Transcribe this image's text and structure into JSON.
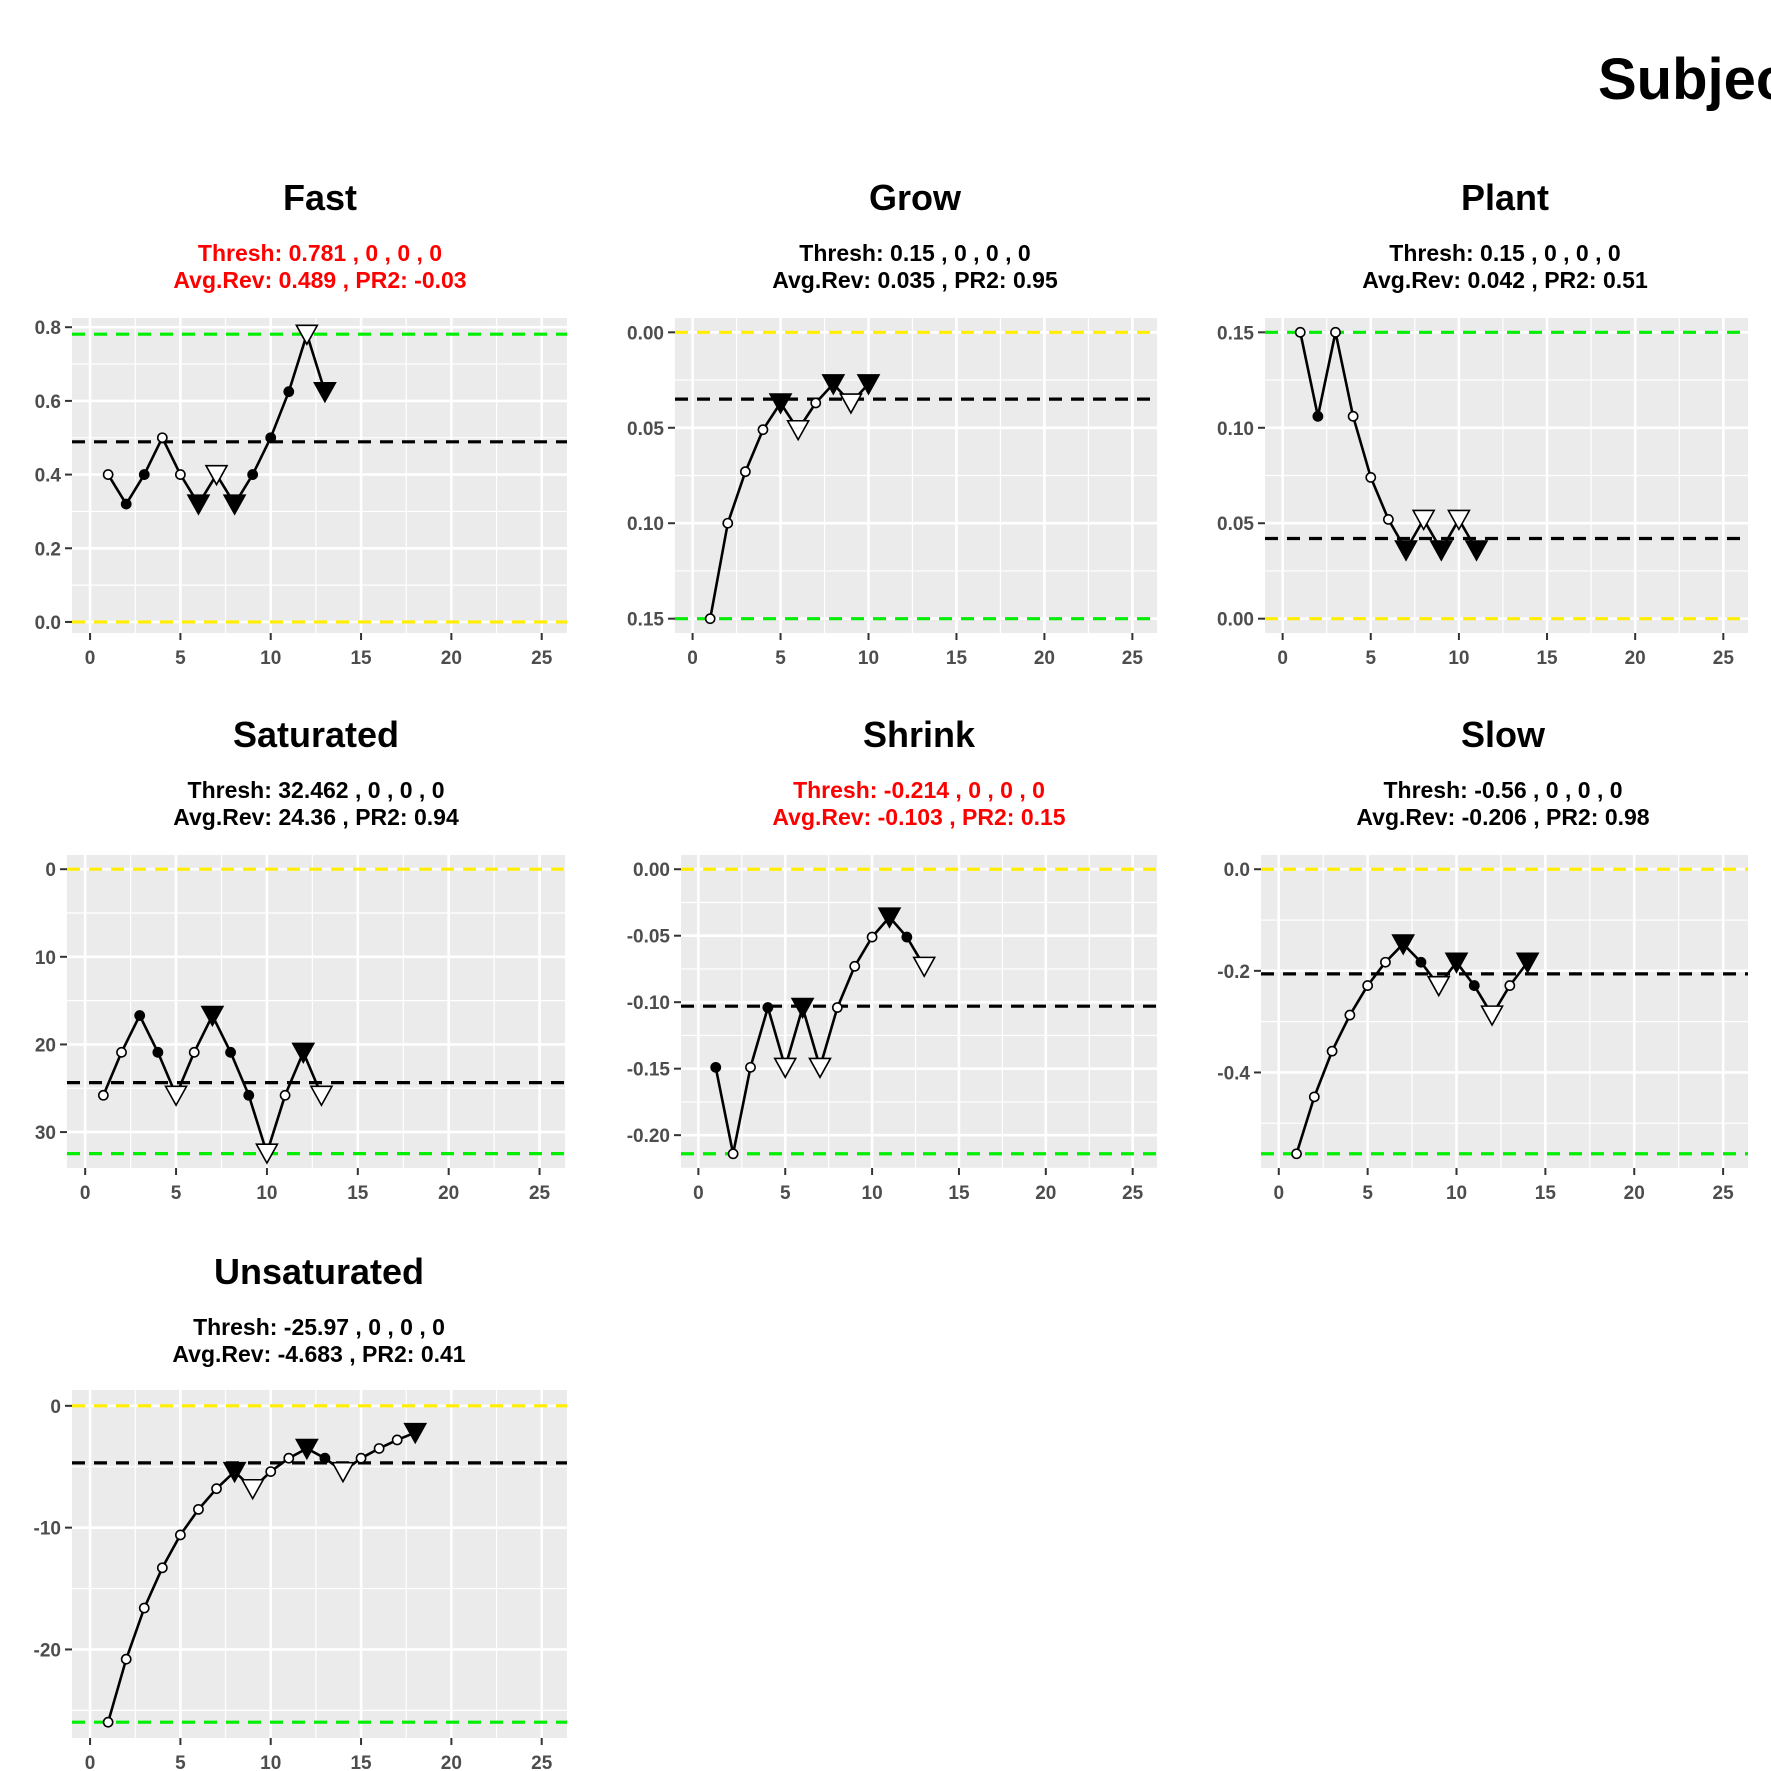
{
  "title": "Subjec",
  "colors": {
    "panel": "#ebebeb",
    "grid_major": "#ffffff",
    "green": "#00ee00",
    "yellow": "#ffee00",
    "red": "#ff0000",
    "black": "#000000"
  },
  "chart_data": [
    {
      "type": "line",
      "title": "Fast",
      "subtitle": [
        "Thresh: 0.781 , 0 , 0 , 0",
        "Avg.Rev: 0.489 , PR2: -0.03"
      ],
      "subtitle_color": "red",
      "xlim": [
        -1,
        26.4
      ],
      "ylim": [
        -0.03,
        0.825
      ],
      "x_ticks": [
        0,
        5,
        10,
        15,
        20,
        25
      ],
      "y_ticks": [
        0.0,
        0.2,
        0.4,
        0.6,
        0.8
      ],
      "y_tick_labels": [
        "0.0",
        "0.2",
        "0.4",
        "0.6",
        "0.8"
      ],
      "reversed": false,
      "lines": {
        "green": 0.781,
        "yellow": 0.0,
        "black": 0.489
      },
      "points": [
        {
          "x": 1,
          "y": 0.4,
          "s": "o"
        },
        {
          "x": 2,
          "y": 0.32,
          "s": "f"
        },
        {
          "x": 3,
          "y": 0.4,
          "s": "f"
        },
        {
          "x": 4,
          "y": 0.5,
          "s": "o"
        },
        {
          "x": 5,
          "y": 0.4,
          "s": "o"
        },
        {
          "x": 6,
          "y": 0.32,
          "s": "F"
        },
        {
          "x": 7,
          "y": 0.4,
          "s": "O"
        },
        {
          "x": 8,
          "y": 0.32,
          "s": "F"
        },
        {
          "x": 9,
          "y": 0.4,
          "s": "f"
        },
        {
          "x": 10,
          "y": 0.5,
          "s": "f"
        },
        {
          "x": 11,
          "y": 0.625,
          "s": "f"
        },
        {
          "x": 12,
          "y": 0.781,
          "s": "O"
        },
        {
          "x": 13,
          "y": 0.625,
          "s": "F"
        }
      ]
    },
    {
      "type": "line",
      "title": "Grow",
      "subtitle": [
        "Thresh: 0.15 , 0 , 0 , 0",
        "Avg.Rev: 0.035 , PR2: 0.95"
      ],
      "subtitle_color": "black",
      "xlim": [
        -1,
        26.4
      ],
      "ylim": [
        -0.0075,
        0.1575
      ],
      "x_ticks": [
        0,
        5,
        10,
        15,
        20,
        25
      ],
      "y_ticks": [
        0.0,
        0.05,
        0.1,
        0.15
      ],
      "y_tick_labels": [
        "0.00",
        "0.05",
        "0.10",
        "0.15"
      ],
      "reversed": true,
      "lines": {
        "green": 0.15,
        "yellow": 0.0,
        "black": 0.035
      },
      "points": [
        {
          "x": 1,
          "y": 0.15,
          "s": "o"
        },
        {
          "x": 2,
          "y": 0.1,
          "s": "o"
        },
        {
          "x": 3,
          "y": 0.073,
          "s": "o"
        },
        {
          "x": 4,
          "y": 0.051,
          "s": "o"
        },
        {
          "x": 5,
          "y": 0.037,
          "s": "F"
        },
        {
          "x": 6,
          "y": 0.051,
          "s": "O"
        },
        {
          "x": 7,
          "y": 0.037,
          "s": "o"
        },
        {
          "x": 8,
          "y": 0.027,
          "s": "F"
        },
        {
          "x": 9,
          "y": 0.037,
          "s": "O"
        },
        {
          "x": 10,
          "y": 0.027,
          "s": "F"
        }
      ]
    },
    {
      "type": "line",
      "title": "Plant",
      "subtitle": [
        "Thresh: 0.15 , 0 , 0 , 0",
        "Avg.Rev: 0.042 , PR2: 0.51"
      ],
      "subtitle_color": "black",
      "xlim": [
        -1,
        26.4
      ],
      "ylim": [
        -0.0075,
        0.1575
      ],
      "x_ticks": [
        0,
        5,
        10,
        15,
        20,
        25
      ],
      "y_ticks": [
        0.0,
        0.05,
        0.1,
        0.15
      ],
      "y_tick_labels": [
        "0.00",
        "0.05",
        "0.10",
        "0.15"
      ],
      "reversed": false,
      "lines": {
        "green": 0.15,
        "yellow": 0.0,
        "black": 0.042
      },
      "points": [
        {
          "x": 1,
          "y": 0.15,
          "s": "o"
        },
        {
          "x": 2,
          "y": 0.106,
          "s": "f"
        },
        {
          "x": 3,
          "y": 0.15,
          "s": "o"
        },
        {
          "x": 4,
          "y": 0.106,
          "s": "o"
        },
        {
          "x": 5,
          "y": 0.074,
          "s": "o"
        },
        {
          "x": 6,
          "y": 0.052,
          "s": "o"
        },
        {
          "x": 7,
          "y": 0.036,
          "s": "F"
        },
        {
          "x": 8,
          "y": 0.052,
          "s": "O"
        },
        {
          "x": 9,
          "y": 0.036,
          "s": "F"
        },
        {
          "x": 10,
          "y": 0.052,
          "s": "O"
        },
        {
          "x": 11,
          "y": 0.036,
          "s": "F"
        }
      ]
    },
    {
      "type": "line",
      "title": "Saturated",
      "subtitle": [
        "Thresh: 32.462 , 0 , 0 , 0",
        "Avg.Rev: 24.36 , PR2: 0.94"
      ],
      "subtitle_color": "black",
      "xlim": [
        -1,
        26.4
      ],
      "ylim": [
        -1.62,
        34.1
      ],
      "x_ticks": [
        0,
        5,
        10,
        15,
        20,
        25
      ],
      "y_ticks": [
        0,
        10,
        20,
        30
      ],
      "y_tick_labels": [
        "0",
        "10",
        "20",
        "30"
      ],
      "reversed": true,
      "lines": {
        "green": 32.462,
        "yellow": 0.0,
        "black": 24.36
      },
      "points": [
        {
          "x": 1,
          "y": 25.8,
          "s": "o"
        },
        {
          "x": 2,
          "y": 20.9,
          "s": "o"
        },
        {
          "x": 3,
          "y": 16.7,
          "s": "f"
        },
        {
          "x": 4,
          "y": 20.9,
          "s": "f"
        },
        {
          "x": 5,
          "y": 25.8,
          "s": "O"
        },
        {
          "x": 6,
          "y": 20.9,
          "s": "o"
        },
        {
          "x": 7,
          "y": 16.7,
          "s": "F"
        },
        {
          "x": 8,
          "y": 20.9,
          "s": "f"
        },
        {
          "x": 9,
          "y": 25.8,
          "s": "f"
        },
        {
          "x": 10,
          "y": 32.4,
          "s": "O"
        },
        {
          "x": 11,
          "y": 25.8,
          "s": "o"
        },
        {
          "x": 12,
          "y": 20.9,
          "s": "F"
        },
        {
          "x": 13,
          "y": 25.8,
          "s": "O"
        }
      ]
    },
    {
      "type": "line",
      "title": "Shrink",
      "subtitle": [
        "Thresh: -0.214 , 0 , 0 , 0",
        "Avg.Rev: -0.103 , PR2: 0.15"
      ],
      "subtitle_color": "red",
      "xlim": [
        -1,
        26.4
      ],
      "ylim": [
        -0.2247,
        0.0107
      ],
      "x_ticks": [
        0,
        5,
        10,
        15,
        20,
        25
      ],
      "y_ticks": [
        0.0,
        -0.05,
        -0.1,
        -0.15,
        -0.2
      ],
      "y_tick_labels": [
        "0.00",
        "-0.05",
        "-0.10",
        "-0.15",
        "-0.20"
      ],
      "reversed": false,
      "lines": {
        "green": -0.214,
        "yellow": 0.0,
        "black": -0.103
      },
      "points": [
        {
          "x": 1,
          "y": -0.149,
          "s": "f"
        },
        {
          "x": 2,
          "y": -0.214,
          "s": "o"
        },
        {
          "x": 3,
          "y": -0.149,
          "s": "o"
        },
        {
          "x": 4,
          "y": -0.104,
          "s": "f"
        },
        {
          "x": 5,
          "y": -0.149,
          "s": "O"
        },
        {
          "x": 6,
          "y": -0.104,
          "s": "F"
        },
        {
          "x": 7,
          "y": -0.149,
          "s": "O"
        },
        {
          "x": 8,
          "y": -0.104,
          "s": "o"
        },
        {
          "x": 9,
          "y": -0.073,
          "s": "o"
        },
        {
          "x": 10,
          "y": -0.051,
          "s": "o"
        },
        {
          "x": 11,
          "y": -0.036,
          "s": "F"
        },
        {
          "x": 12,
          "y": -0.051,
          "s": "f"
        },
        {
          "x": 13,
          "y": -0.073,
          "s": "O"
        }
      ]
    },
    {
      "type": "line",
      "title": "Slow",
      "subtitle": [
        "Thresh: -0.56 , 0 , 0 , 0",
        "Avg.Rev: -0.206 , PR2: 0.98"
      ],
      "subtitle_color": "black",
      "xlim": [
        -1,
        26.4
      ],
      "ylim": [
        -0.588,
        0.028
      ],
      "x_ticks": [
        0,
        5,
        10,
        15,
        20,
        25
      ],
      "y_ticks": [
        0.0,
        -0.2,
        -0.4
      ],
      "y_tick_labels": [
        "0.0",
        "-0.2",
        "-0.4"
      ],
      "reversed": false,
      "lines": {
        "green": -0.56,
        "yellow": 0.0,
        "black": -0.206
      },
      "points": [
        {
          "x": 1,
          "y": -0.56,
          "s": "o"
        },
        {
          "x": 2,
          "y": -0.448,
          "s": "o"
        },
        {
          "x": 3,
          "y": -0.358,
          "s": "o"
        },
        {
          "x": 4,
          "y": -0.287,
          "s": "o"
        },
        {
          "x": 5,
          "y": -0.229,
          "s": "o"
        },
        {
          "x": 6,
          "y": -0.183,
          "s": "o"
        },
        {
          "x": 7,
          "y": -0.147,
          "s": "F"
        },
        {
          "x": 8,
          "y": -0.183,
          "s": "f"
        },
        {
          "x": 9,
          "y": -0.229,
          "s": "O"
        },
        {
          "x": 10,
          "y": -0.183,
          "s": "F"
        },
        {
          "x": 11,
          "y": -0.229,
          "s": "f"
        },
        {
          "x": 12,
          "y": -0.287,
          "s": "O"
        },
        {
          "x": 13,
          "y": -0.229,
          "s": "o"
        },
        {
          "x": 14,
          "y": -0.183,
          "s": "F"
        }
      ]
    },
    {
      "type": "line",
      "title": "Unsaturated",
      "subtitle": [
        "Thresh: -25.97 , 0 , 0 , 0",
        "Avg.Rev: -4.683 , PR2: 0.41"
      ],
      "subtitle_color": "black",
      "xlim": [
        -1,
        26.4
      ],
      "ylim": [
        -27.27,
        1.3
      ],
      "x_ticks": [
        0,
        5,
        10,
        15,
        20,
        25
      ],
      "y_ticks": [
        0,
        -10,
        -20
      ],
      "y_tick_labels": [
        "0",
        "-10",
        "-20"
      ],
      "reversed": false,
      "lines": {
        "green": -25.97,
        "yellow": 0.0,
        "black": -4.683
      },
      "points": [
        {
          "x": 1,
          "y": -25.97,
          "s": "o"
        },
        {
          "x": 2,
          "y": -20.8,
          "s": "o"
        },
        {
          "x": 3,
          "y": -16.6,
          "s": "o"
        },
        {
          "x": 4,
          "y": -13.3,
          "s": "o"
        },
        {
          "x": 5,
          "y": -10.6,
          "s": "o"
        },
        {
          "x": 6,
          "y": -8.5,
          "s": "o"
        },
        {
          "x": 7,
          "y": -6.8,
          "s": "o"
        },
        {
          "x": 8,
          "y": -5.4,
          "s": "F"
        },
        {
          "x": 9,
          "y": -6.8,
          "s": "O"
        },
        {
          "x": 10,
          "y": -5.4,
          "s": "o"
        },
        {
          "x": 11,
          "y": -4.3,
          "s": "o"
        },
        {
          "x": 12,
          "y": -3.5,
          "s": "F"
        },
        {
          "x": 13,
          "y": -4.3,
          "s": "f"
        },
        {
          "x": 14,
          "y": -5.4,
          "s": "O"
        },
        {
          "x": 15,
          "y": -4.3,
          "s": "o"
        },
        {
          "x": 16,
          "y": -3.5,
          "s": "o"
        },
        {
          "x": 17,
          "y": -2.8,
          "s": "o"
        },
        {
          "x": 18,
          "y": -2.2,
          "s": "F"
        }
      ]
    }
  ]
}
